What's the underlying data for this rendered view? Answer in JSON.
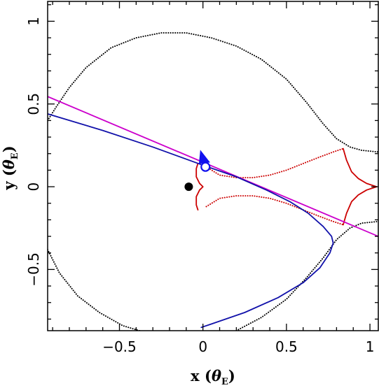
{
  "chart_data": {
    "type": "line",
    "xlim": [
      -0.93,
      1.05
    ],
    "ylim": [
      -0.87,
      1.12
    ],
    "xlabel": {
      "main": "x (",
      "sym": "θ",
      "sub": "E",
      "close": ")"
    },
    "ylabel": {
      "main": "y (",
      "sym": "θ",
      "sub": "E",
      "close": ")"
    },
    "x_ticks": [
      {
        "v": -0.5,
        "label": "−0.5"
      },
      {
        "v": 0,
        "label": "0"
      },
      {
        "v": 0.5,
        "label": "0.5"
      },
      {
        "v": 1,
        "label": "1"
      }
    ],
    "y_ticks": [
      {
        "v": -0.5,
        "label": "−0.5"
      },
      {
        "v": 0,
        "label": "0"
      },
      {
        "v": 0.5,
        "label": "0.5"
      },
      {
        "v": 1,
        "label": "1"
      }
    ],
    "grid": false,
    "series": [
      {
        "style": "dotted",
        "color": "#000000",
        "points": [
          [
            -0.93,
            0.4
          ],
          [
            -0.88,
            0.48
          ],
          [
            -0.8,
            0.6
          ],
          [
            -0.7,
            0.72
          ],
          [
            -0.55,
            0.84
          ],
          [
            -0.4,
            0.9
          ],
          [
            -0.25,
            0.93
          ],
          [
            -0.1,
            0.93
          ],
          [
            0.05,
            0.9
          ],
          [
            0.2,
            0.85
          ],
          [
            0.35,
            0.77
          ],
          [
            0.5,
            0.65
          ],
          [
            0.62,
            0.51
          ],
          [
            0.72,
            0.38
          ],
          [
            0.8,
            0.29
          ],
          [
            0.88,
            0.24
          ],
          [
            0.95,
            0.22
          ],
          [
            1.05,
            0.21
          ]
        ]
      },
      {
        "style": "dotted",
        "color": "#000000",
        "points": [
          [
            -0.93,
            -0.38
          ],
          [
            -0.86,
            -0.52
          ],
          [
            -0.75,
            -0.66
          ],
          [
            -0.62,
            -0.76
          ],
          [
            -0.48,
            -0.84
          ],
          [
            -0.38,
            -0.87
          ]
        ]
      },
      {
        "style": "dotted",
        "color": "#000000",
        "points": [
          [
            0.2,
            -0.87
          ],
          [
            0.35,
            -0.79
          ],
          [
            0.5,
            -0.68
          ],
          [
            0.62,
            -0.55
          ],
          [
            0.72,
            -0.43
          ],
          [
            0.8,
            -0.32
          ],
          [
            0.88,
            -0.25
          ],
          [
            0.95,
            -0.22
          ],
          [
            1.05,
            -0.21
          ]
        ]
      },
      {
        "style": "dotted",
        "color": "#cc0000",
        "points": [
          [
            0.02,
            0.12
          ],
          [
            0.1,
            0.07
          ],
          [
            0.2,
            0.055
          ],
          [
            0.3,
            0.055
          ],
          [
            0.4,
            0.07
          ],
          [
            0.5,
            0.1
          ],
          [
            0.6,
            0.14
          ],
          [
            0.7,
            0.18
          ],
          [
            0.78,
            0.21
          ],
          [
            0.84,
            0.23
          ]
        ]
      },
      {
        "style": "dotted",
        "color": "#cc0000",
        "points": [
          [
            0.02,
            -0.12
          ],
          [
            0.1,
            -0.07
          ],
          [
            0.2,
            -0.055
          ],
          [
            0.3,
            -0.055
          ],
          [
            0.4,
            -0.07
          ],
          [
            0.5,
            -0.1
          ],
          [
            0.6,
            -0.14
          ],
          [
            0.7,
            -0.18
          ],
          [
            0.78,
            -0.21
          ],
          [
            0.84,
            -0.23
          ]
        ]
      },
      {
        "style": "solid",
        "color": "#cc0000",
        "points": [
          [
            -0.03,
            0.14
          ],
          [
            -0.04,
            0.11
          ],
          [
            -0.04,
            0.06
          ],
          [
            -0.02,
            0.02
          ],
          [
            0.0,
            0.0
          ],
          [
            -0.02,
            -0.02
          ],
          [
            -0.04,
            -0.06
          ],
          [
            -0.04,
            -0.11
          ],
          [
            -0.03,
            -0.14
          ]
        ]
      },
      {
        "style": "solid",
        "color": "#cc0000",
        "points": [
          [
            0.84,
            0.23
          ],
          [
            0.86,
            0.16
          ],
          [
            0.89,
            0.09
          ],
          [
            0.93,
            0.05
          ],
          [
            0.98,
            0.02
          ],
          [
            1.04,
            0.0
          ],
          [
            0.98,
            -0.02
          ],
          [
            0.93,
            -0.05
          ],
          [
            0.89,
            -0.09
          ],
          [
            0.86,
            -0.16
          ],
          [
            0.84,
            -0.23
          ]
        ]
      },
      {
        "style": "solid",
        "color": "#cc00cc",
        "points": [
          [
            -0.93,
            0.545
          ],
          [
            1.05,
            -0.3
          ]
        ]
      },
      {
        "style": "solid",
        "color": "#1111aa",
        "points": [
          [
            -0.93,
            0.44
          ],
          [
            -0.6,
            0.34
          ],
          [
            -0.3,
            0.24
          ],
          [
            0.0,
            0.13
          ],
          [
            0.2,
            0.06
          ],
          [
            0.38,
            -0.02
          ],
          [
            0.52,
            -0.09
          ],
          [
            0.63,
            -0.16
          ],
          [
            0.72,
            -0.24
          ],
          [
            0.77,
            -0.3
          ],
          [
            0.78,
            -0.34
          ],
          [
            0.76,
            -0.4
          ],
          [
            0.7,
            -0.49
          ],
          [
            0.6,
            -0.58
          ],
          [
            0.45,
            -0.67
          ],
          [
            0.25,
            -0.76
          ],
          [
            0.05,
            -0.83
          ],
          [
            -0.01,
            -0.85
          ]
        ]
      }
    ],
    "markers": [
      {
        "kind": "filled-circle",
        "x": -0.085,
        "y": 0.0,
        "color": "#000000"
      },
      {
        "kind": "open-circle",
        "x": 0.015,
        "y": 0.12,
        "color": "#1111ee"
      },
      {
        "kind": "arrow",
        "x": 0.005,
        "y": 0.155,
        "color": "#1111ee"
      }
    ]
  }
}
